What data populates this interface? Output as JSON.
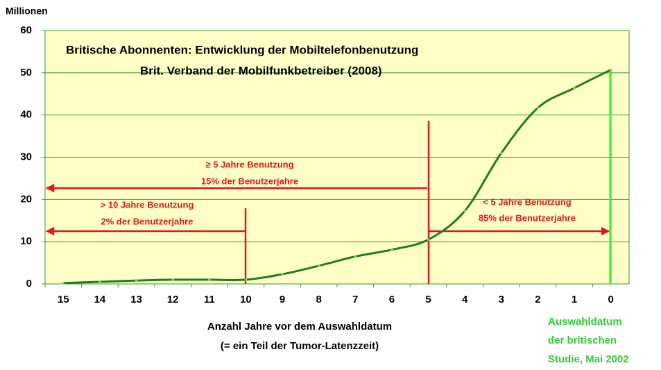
{
  "chart_data": {
    "type": "line",
    "title": [
      "Britische Abonnenten: Entwicklung der Mobiltelefonbenutzung",
      "Brit. Verband der Mobilfunkbetreiber (2008)"
    ],
    "ylabel": "Millionen",
    "xlabel": [
      "Anzahl Jahre vor dem Auswahldatum",
      "(= ein Teil der Tumor-Latenzzeit)"
    ],
    "categories": [
      "15",
      "14",
      "13",
      "12",
      "11",
      "10",
      "9",
      "8",
      "7",
      "6",
      "5",
      "4",
      "3",
      "2",
      "1",
      "0"
    ],
    "series": [
      {
        "name": "Abonnenten",
        "color": "#1e7d1e",
        "values": [
          0.2,
          0.5,
          0.8,
          1.0,
          1.0,
          1.0,
          2.3,
          4.3,
          6.5,
          8.1,
          10.5,
          17.3,
          31,
          41.7,
          46.4,
          50.7
        ]
      }
    ],
    "ylim": [
      0,
      60
    ],
    "yticks": [
      0,
      10,
      20,
      30,
      40,
      50,
      60
    ],
    "grid": true,
    "annotations": [
      {
        "lines": [
          "≥ 5 Jahre Benutzung",
          "15% der Benutzerjahre"
        ]
      },
      {
        "lines": [
          "> 10 Jahre Benutzung",
          "2% der Benutzerjahre"
        ]
      },
      {
        "lines": [
          "< 5 Jahre Benutzung",
          "85% der Benutzerjahre"
        ]
      },
      {
        "lines": [
          "Auswahldatum",
          "der britischen",
          "Studie, Mai 2002"
        ]
      }
    ]
  }
}
